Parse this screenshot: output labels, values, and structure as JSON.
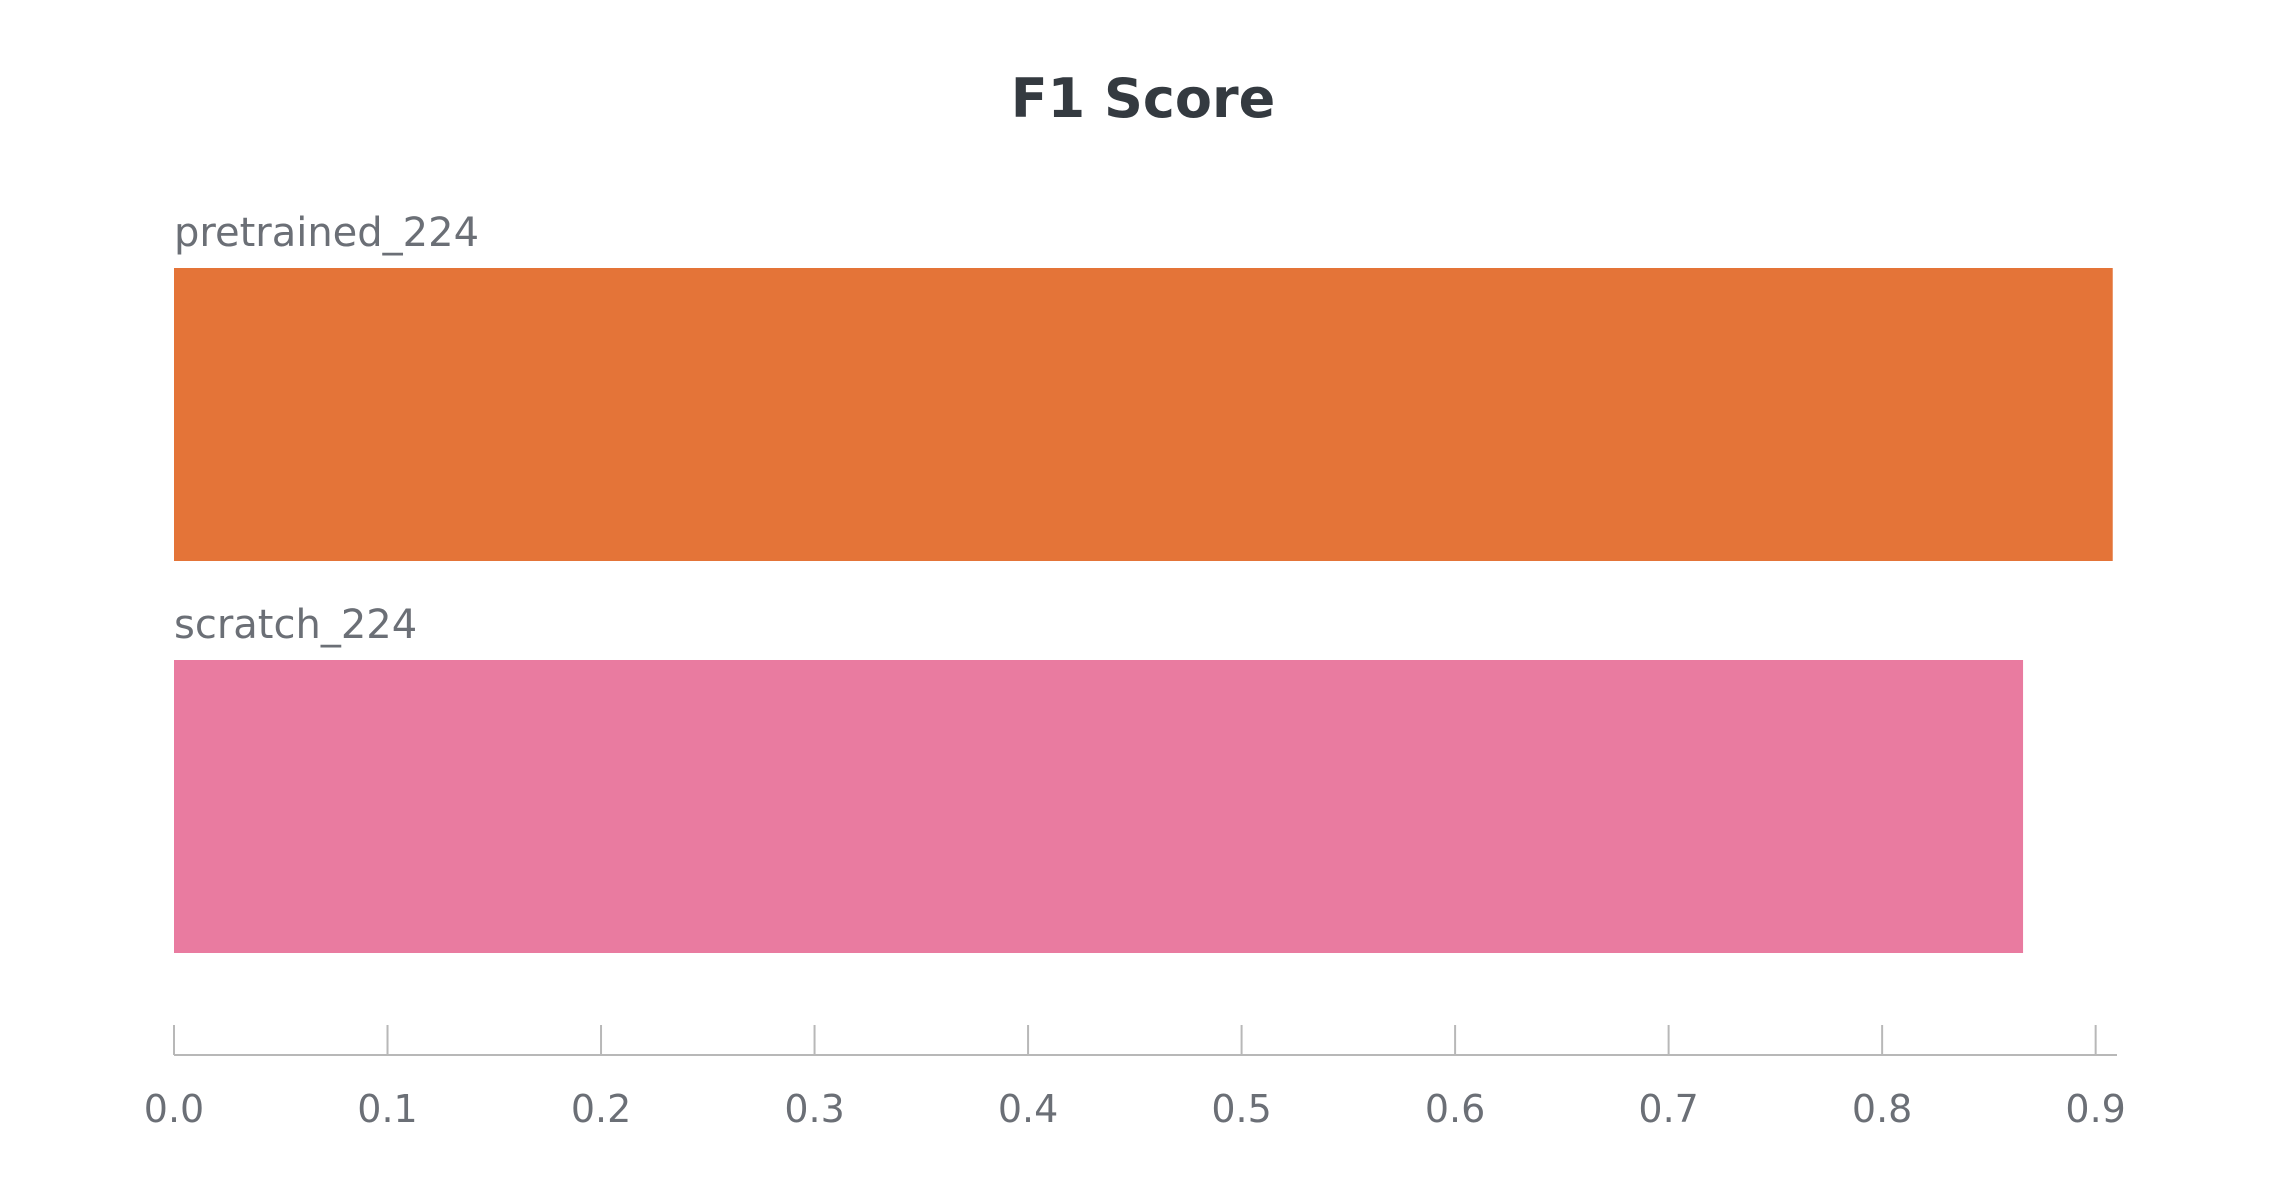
{
  "chart_data": {
    "type": "bar",
    "orientation": "horizontal",
    "title": "F1 Score",
    "xlabel": "",
    "ylabel": "",
    "xlim": [
      0,
      0.91
    ],
    "ticks": [
      "0.0",
      "0.1",
      "0.2",
      "0.3",
      "0.4",
      "0.5",
      "0.6",
      "0.7",
      "0.8",
      "0.9"
    ],
    "tick_values": [
      0.0,
      0.1,
      0.2,
      0.3,
      0.4,
      0.5,
      0.6,
      0.7,
      0.8,
      0.9
    ],
    "grid": false,
    "legend": "none",
    "categories": [
      "pretrained_224",
      "scratch_224"
    ],
    "values": [
      0.908,
      0.866
    ],
    "colors": [
      "#e47438",
      "#e97ba0"
    ]
  }
}
